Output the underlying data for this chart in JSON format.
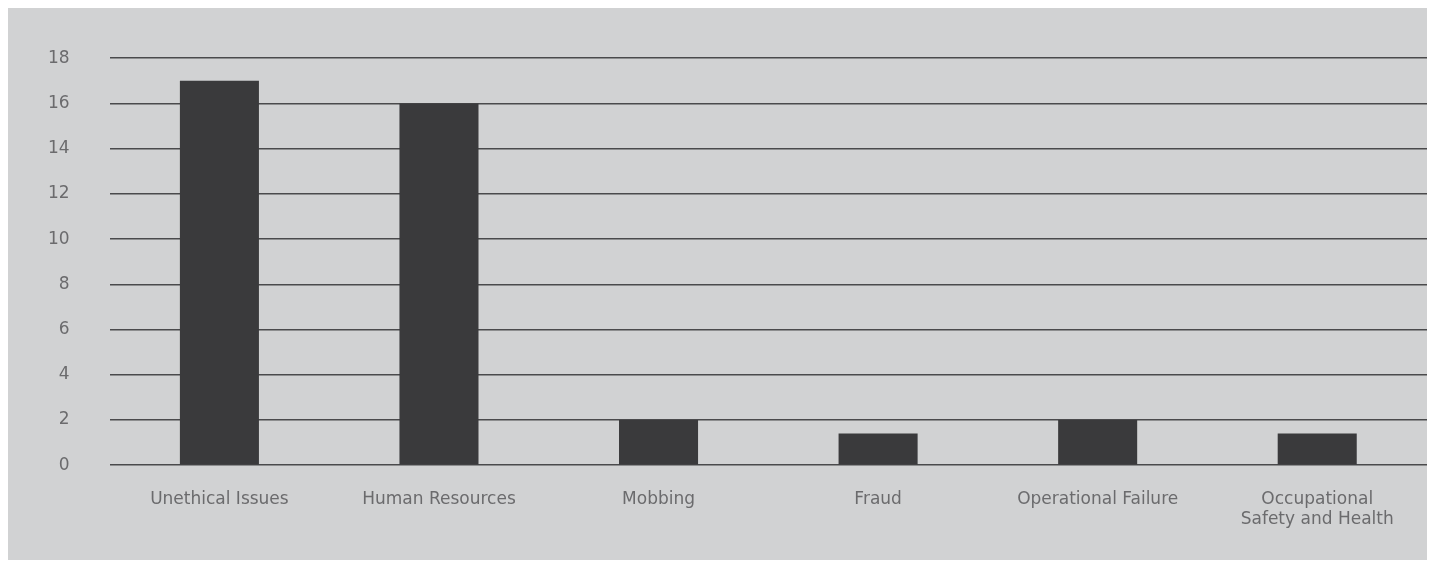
{
  "chart_data": {
    "type": "bar",
    "categories": [
      "Unethical Issues",
      "Human Resources",
      "Mobbing",
      "Fraud",
      "Operational Failure",
      "Occupational Safety and Health"
    ],
    "values": [
      17,
      16,
      2,
      1.4,
      2,
      1.4
    ],
    "color": "#3a3a3c",
    "ylim": [
      0,
      18
    ],
    "yticks": [
      0,
      2,
      4,
      6,
      8,
      10,
      12,
      14,
      16,
      18
    ],
    "grid": "y",
    "legend": false
  }
}
